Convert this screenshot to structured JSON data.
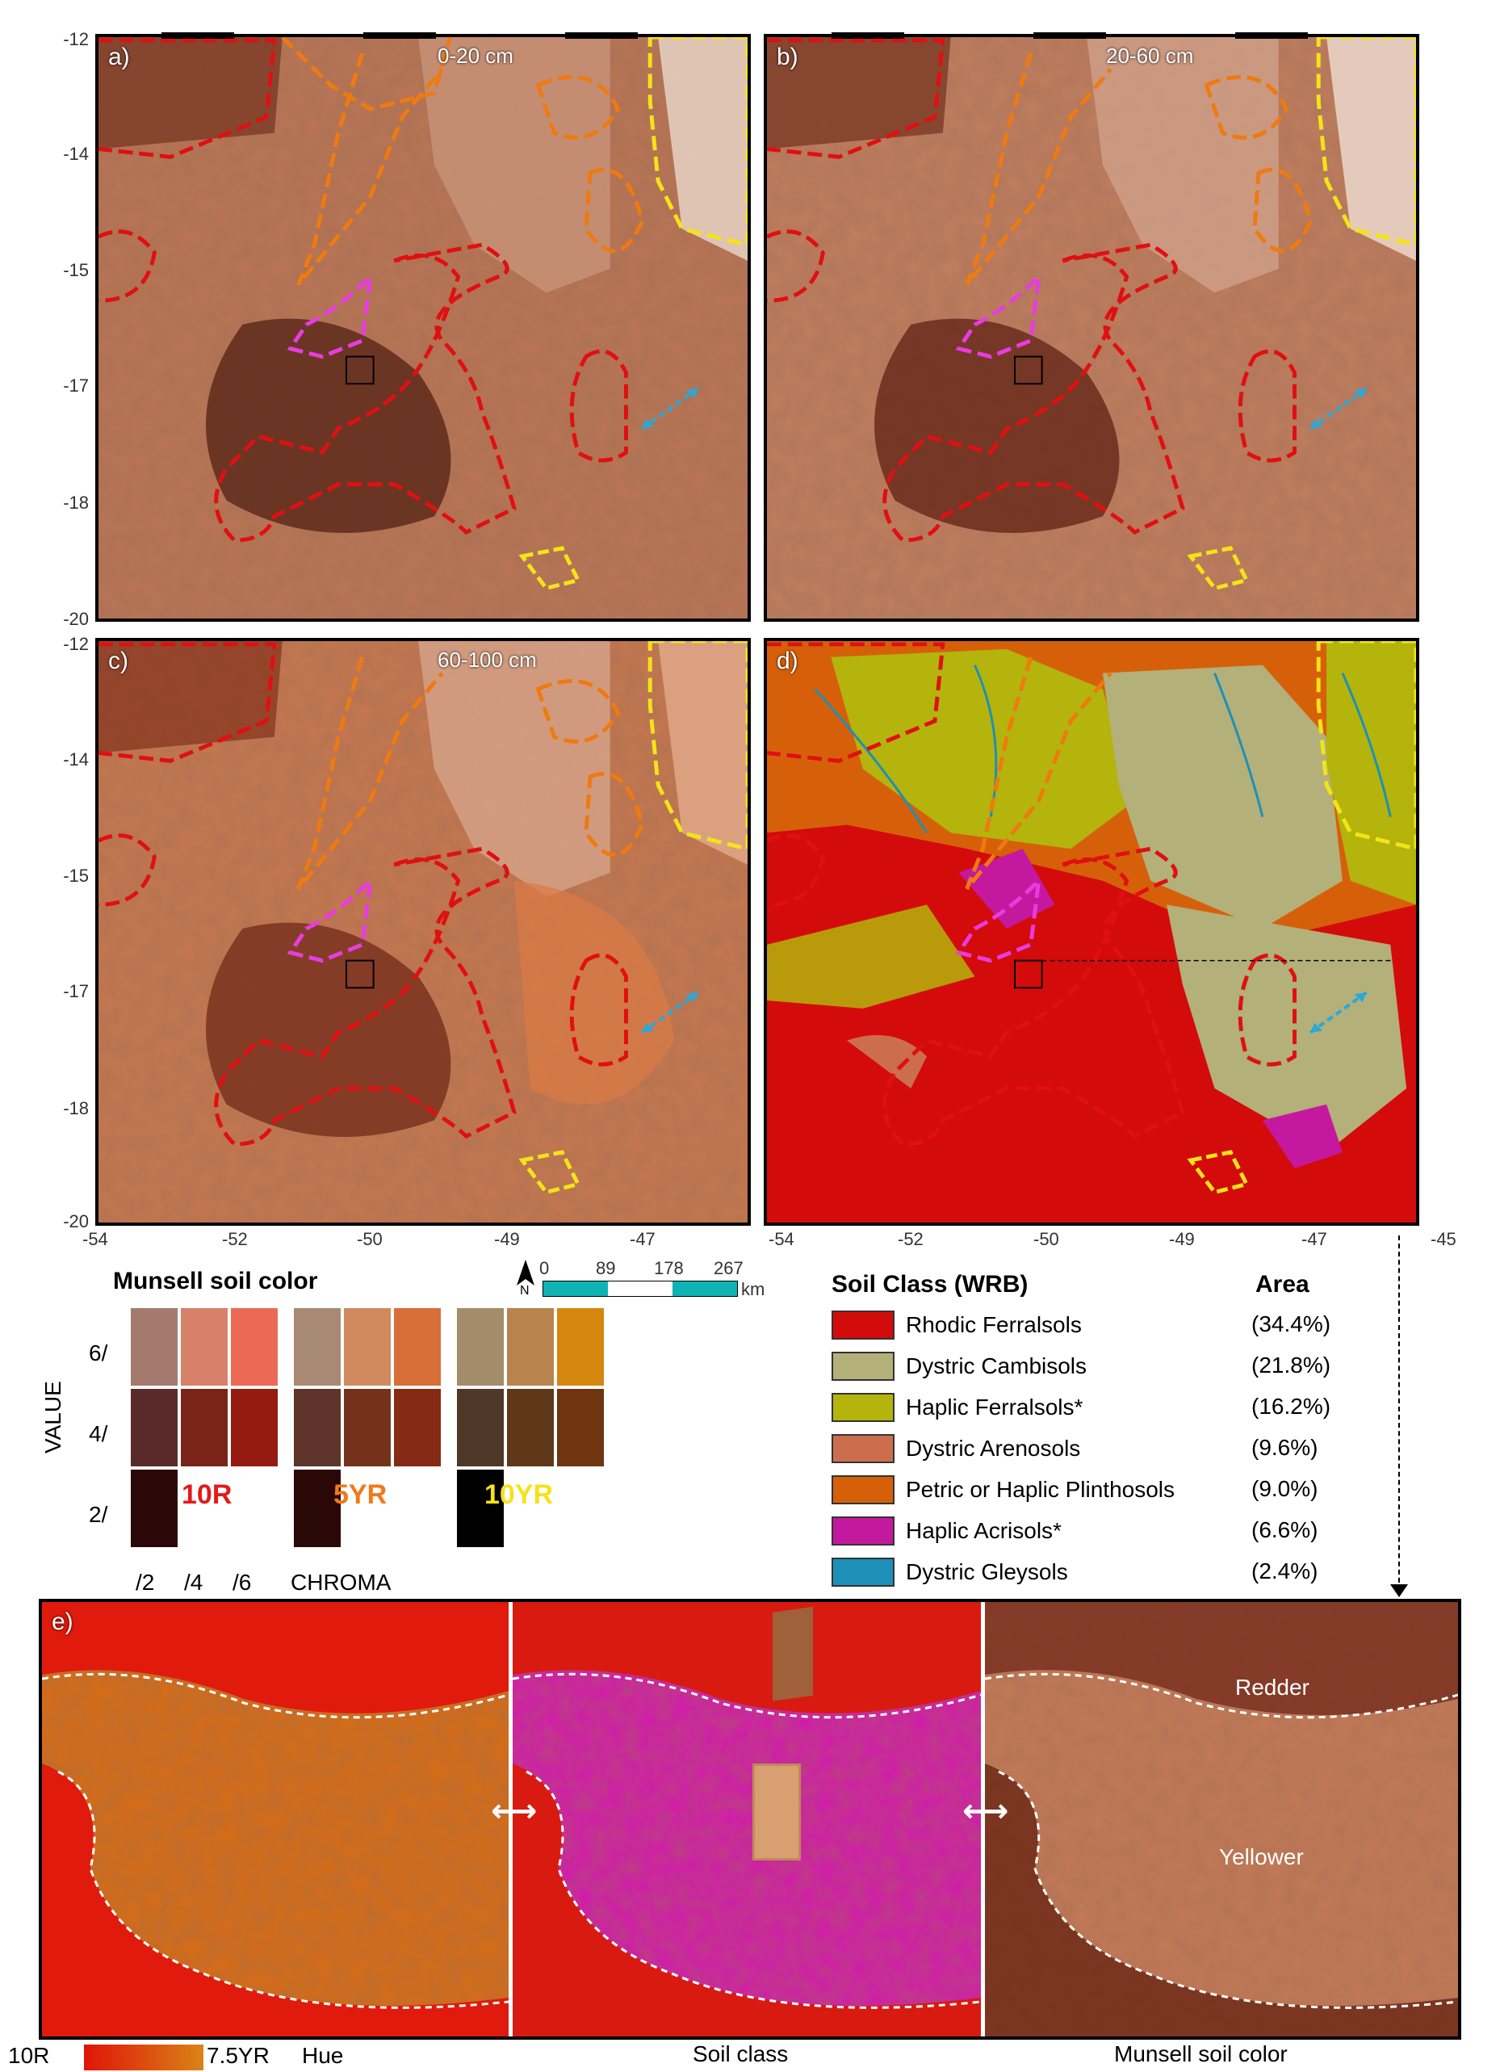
{
  "panels": [
    {
      "label": "a)",
      "depth": "0-20 cm"
    },
    {
      "label": "b)",
      "depth": "20-60 cm"
    },
    {
      "label": "c)",
      "depth": "60-100 cm"
    },
    {
      "label": "d)",
      "depth": ""
    }
  ],
  "axes": {
    "y_ticks": [
      "-12",
      "-14",
      "-15",
      "-17",
      "-18",
      "-20"
    ],
    "x_ticks": [
      "-54",
      "-52",
      "-50",
      "-49",
      "-47",
      "-45"
    ]
  },
  "scalebar": {
    "ticks": [
      "0",
      "89",
      "178",
      "267"
    ],
    "unit": "km",
    "north": "N"
  },
  "munsell": {
    "title": "Munsell soil color",
    "value_label": "VALUE",
    "value_ticks": [
      "6/",
      "4/",
      "2/"
    ],
    "chroma_ticks": [
      "/2",
      "/4",
      "/6"
    ],
    "chroma_label": "CHROMA",
    "hues": [
      {
        "name": "10R",
        "color": "#e31a1c"
      },
      {
        "name": "5YR",
        "color": "#f07a1a"
      },
      {
        "name": "10YR",
        "color": "#f5e31a"
      }
    ],
    "grid_colors": [
      [
        "#a57a6e",
        "#d9806a",
        "#ec6a55",
        "#a88a74",
        "#d08a5e",
        "#d86e38",
        "#a38c6a",
        "#b8834c",
        "#d4870f"
      ],
      [
        "#5a2a2a",
        "#7a2418",
        "#951a10",
        "#5e342a",
        "#75321a",
        "#852a14",
        "#4f3828",
        "#5e3818",
        "#6f3410"
      ],
      [
        "#2b0708",
        "",
        "",
        "#2a0806",
        "",
        "",
        "#000000",
        "",
        ""
      ]
    ]
  },
  "soil_legend": {
    "title": "Soil Class (WRB)",
    "area_title": "Area",
    "classes": [
      {
        "name": "Rhodic Ferralsols",
        "area": "(34.4%)",
        "color": "#d40b0b"
      },
      {
        "name": "Dystric Cambisols",
        "area": "(21.8%)",
        "color": "#b3b07a"
      },
      {
        "name": "Haplic Ferralsols*",
        "area": "(16.2%)",
        "color": "#b4b40c"
      },
      {
        "name": "Dystric Arenosols",
        "area": "(9.6%)",
        "color": "#cc6e4e"
      },
      {
        "name": "Petric or Haplic Plinthosols",
        "area": "(9.0%)",
        "color": "#d6600a"
      },
      {
        "name": "Haplic Acrisols*",
        "area": "(6.6%)",
        "color": "#c4199e"
      },
      {
        "name": "Dystric Gleysols",
        "area": "(2.4%)",
        "color": "#1c90b8"
      }
    ]
  },
  "bottom": {
    "label": "e)",
    "hue_start": "10R",
    "hue_end": "7.5YR",
    "hue_label": "Hue",
    "caption_mid": "Soil class",
    "caption_right": "Munsell soil color",
    "redder": "Redder",
    "yellower": "Yellower"
  },
  "colors": {
    "rhodic_outline": "#e01010",
    "plinthosol_outline": "#ee7a10",
    "cambisol_outline": "#f2e418",
    "acrisol_outline": "#e83ce0",
    "arrow": "#2aa8d8"
  }
}
